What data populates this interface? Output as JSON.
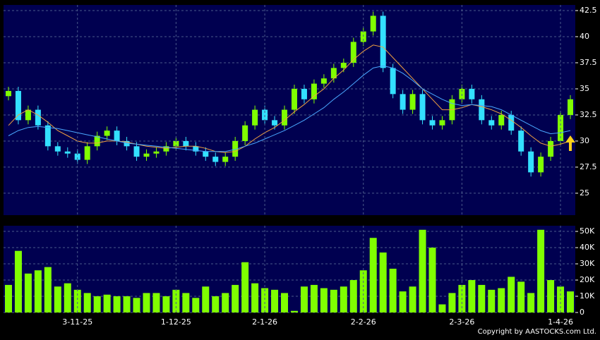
{
  "chart_data": [
    {
      "type": "candlestick",
      "up_color": "#80ff00",
      "down_color": "#33e0ff",
      "ylim": [
        22.9,
        43.04
      ],
      "yticks": [
        25,
        27.5,
        30,
        32.5,
        35,
        37.5,
        40,
        42.5
      ],
      "grid": true,
      "open": [
        34.3,
        34.8,
        32,
        33,
        31.5,
        29.5,
        29,
        28.8,
        28.2,
        29.5,
        30.5,
        31,
        30,
        29.5,
        28.5,
        28.8,
        29,
        29.5,
        30,
        29.5,
        29,
        28.5,
        28,
        28.5,
        30,
        31.5,
        33,
        32,
        31.5,
        33,
        35,
        34,
        35.5,
        36,
        37,
        37.5,
        39.5,
        40.5,
        42,
        37,
        34.5,
        33,
        34.5,
        32,
        31.5,
        32,
        34,
        35,
        34,
        32,
        31.5,
        32.5,
        31,
        29,
        27,
        28.5,
        30,
        32.5
      ],
      "high": [
        35.2,
        35.2,
        33.4,
        33.4,
        31.9,
        29.9,
        29.4,
        29.2,
        29.9,
        30.9,
        31.4,
        31.4,
        30.4,
        29.9,
        29.2,
        29.4,
        29.9,
        30.4,
        30.4,
        29.9,
        29.4,
        28.9,
        28.9,
        30.4,
        31.9,
        33.4,
        33.4,
        32.4,
        33.4,
        35.4,
        35.4,
        35.9,
        36.4,
        37.4,
        37.9,
        39.9,
        40.9,
        42.4,
        42.4,
        37.4,
        34.9,
        34.9,
        34.9,
        32.4,
        32.4,
        34.4,
        35.4,
        35.4,
        34.4,
        32.4,
        32.9,
        32.9,
        31.4,
        29.4,
        28.9,
        30.4,
        32.9,
        34.4
      ],
      "low": [
        33.9,
        31.6,
        31.6,
        31.1,
        29.1,
        28.6,
        28.4,
        27.8,
        27.8,
        29.1,
        30.1,
        29.6,
        29.1,
        28.1,
        28.1,
        28.4,
        28.6,
        29.1,
        29.1,
        28.6,
        28.1,
        27.6,
        27.6,
        28.1,
        29.6,
        31.1,
        31.6,
        31.1,
        31.1,
        32.6,
        33.6,
        33.6,
        35.1,
        35.6,
        36.6,
        37.1,
        39.1,
        40.1,
        36.6,
        34.1,
        32.6,
        32.6,
        31.6,
        31.1,
        31.1,
        31.6,
        33.6,
        33.6,
        31.6,
        31.1,
        31.1,
        30.6,
        28.6,
        26.6,
        26.6,
        28.1,
        29.6,
        32.1
      ],
      "close": [
        34.8,
        32,
        33,
        31.5,
        29.5,
        29,
        28.8,
        28.2,
        29.5,
        30.5,
        31,
        30,
        29.5,
        28.5,
        28.8,
        29,
        29.5,
        30,
        29.5,
        29,
        28.5,
        28,
        28.5,
        30,
        31.5,
        33,
        32,
        31.5,
        33,
        35,
        34,
        35.5,
        36,
        37,
        37.5,
        39.5,
        40.5,
        42,
        37,
        34.5,
        33,
        34.5,
        32,
        31.5,
        32,
        34,
        35,
        34,
        32,
        31.5,
        32.5,
        31,
        29,
        27,
        28.5,
        30,
        32.5,
        34
      ],
      "series": [
        {
          "color": "#f0a040",
          "values": [
            31.5,
            32.5,
            33,
            32.5,
            31.8,
            31,
            30.5,
            30,
            29.8,
            29.8,
            30,
            30,
            29.9,
            29.7,
            29.5,
            29.4,
            29.3,
            29.4,
            29.5,
            29.5,
            29.3,
            29,
            28.9,
            29,
            29.5,
            30.2,
            30.8,
            31.3,
            32,
            32.8,
            33.5,
            34.3,
            35,
            36,
            36.8,
            37.8,
            38.6,
            39.2,
            39,
            38,
            37,
            36,
            35,
            34,
            33,
            33,
            33.2,
            33.5,
            33.3,
            33,
            32.6,
            32,
            31.3,
            30.5,
            29.8,
            29.5,
            29.7,
            30
          ]
        },
        {
          "color": "#4aa8ff",
          "values": [
            30.5,
            31,
            31.3,
            31.4,
            31.3,
            31.2,
            31,
            30.8,
            30.6,
            30.4,
            30.2,
            30,
            29.8,
            29.7,
            29.6,
            29.5,
            29.4,
            29.3,
            29.2,
            29.1,
            29,
            29,
            29,
            29.2,
            29.5,
            29.8,
            30.2,
            30.6,
            31,
            31.5,
            32,
            32.6,
            33.2,
            34,
            34.7,
            35.5,
            36.3,
            37,
            37.2,
            37,
            36.5,
            35.8,
            35,
            34.5,
            34,
            33.6,
            33.4,
            33.5,
            33.4,
            33.3,
            33,
            32.5,
            32,
            31.5,
            31,
            30.7,
            30.8,
            31
          ]
        }
      ]
    },
    {
      "type": "bar",
      "color": "#80ff00",
      "categories": [
        null,
        null,
        null,
        null,
        null,
        null,
        null,
        "3-11-25",
        null,
        null,
        null,
        null,
        null,
        null,
        null,
        null,
        null,
        "1-12-25",
        null,
        null,
        null,
        null,
        null,
        null,
        null,
        null,
        "2-1-26",
        null,
        null,
        null,
        null,
        null,
        null,
        null,
        null,
        null,
        "2-2-26",
        null,
        null,
        null,
        null,
        null,
        null,
        null,
        null,
        null,
        "2-3-26",
        null,
        null,
        null,
        null,
        null,
        null,
        null,
        null,
        null,
        "1-4-26",
        null
      ],
      "values": [
        17000,
        38000,
        24000,
        26000,
        28000,
        16000,
        18000,
        14000,
        12000,
        10000,
        11000,
        10000,
        10000,
        9000,
        12000,
        12000,
        10000,
        14000,
        12000,
        9000,
        16000,
        10000,
        12000,
        17000,
        31000,
        18000,
        15000,
        14000,
        12000,
        1000,
        16000,
        17000,
        15000,
        14000,
        16000,
        20000,
        26000,
        46000,
        37000,
        27000,
        13000,
        16000,
        51000,
        40000,
        5000,
        12000,
        17000,
        20000,
        17000,
        14000,
        15000,
        22000,
        19000,
        12000,
        51000,
        20000,
        16000,
        13000
      ],
      "ylim": [
        0,
        53500
      ],
      "yticks": [
        0,
        {
          "value": 10000,
          "label": "10K"
        },
        {
          "value": 20000,
          "label": "20K"
        },
        {
          "value": 30000,
          "label": "30K"
        },
        {
          "value": 40000,
          "label": "40K"
        },
        {
          "value": 50000,
          "label": "50K"
        }
      ],
      "grid": true
    }
  ],
  "footer": "Copyright by AASTOCKS.com Ltd."
}
